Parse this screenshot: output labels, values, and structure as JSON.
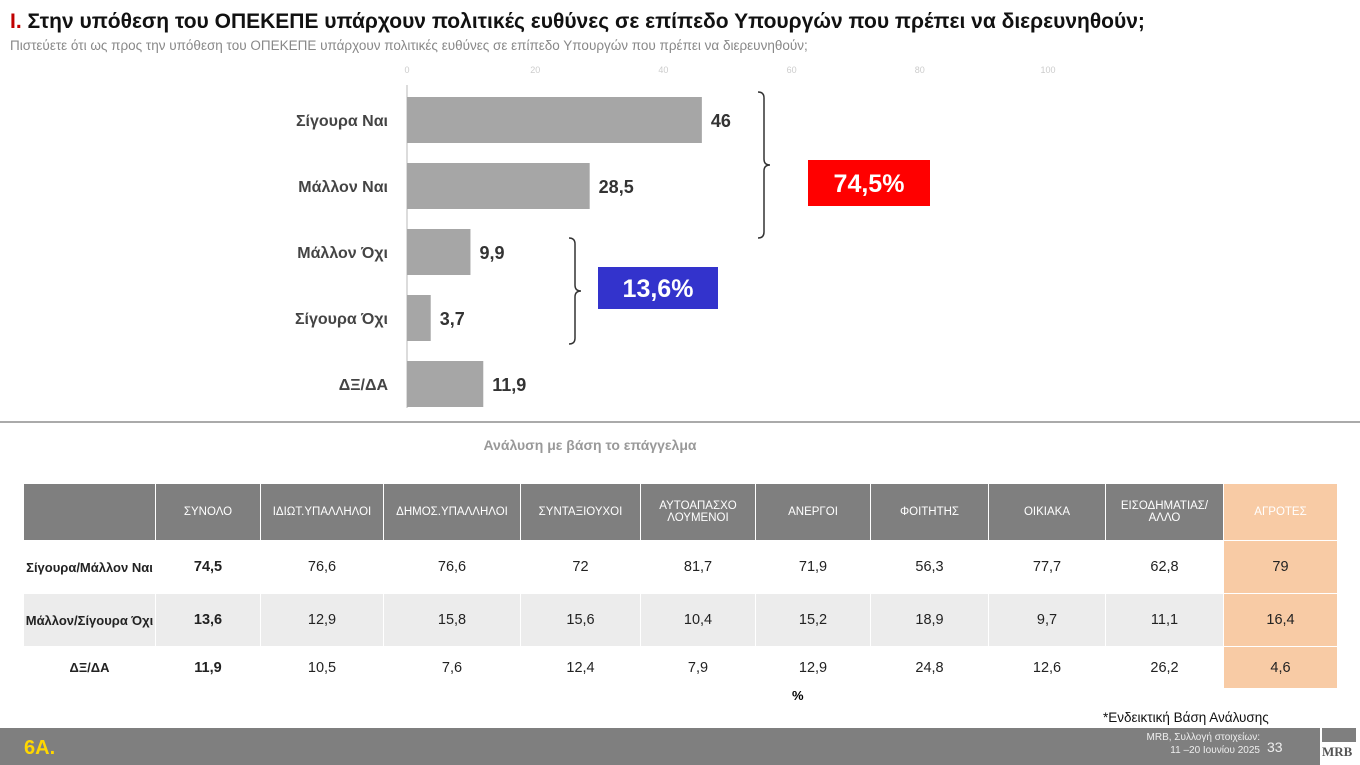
{
  "header": {
    "number": "I.",
    "title": "Στην υπόθεση του ΟΠΕΚΕΠΕ υπάρχουν πολιτικές ευθύνες σε επίπεδο Υπουργών που πρέπει να διερευνηθούν;",
    "subtitle": "Πιστεύετε ότι ως προς την υπόθεση του ΟΠΕΚΕΠΕ υπάρχουν πολιτικές ευθύνες σε επίπεδο Υπουργών που πρέπει να διερευνηθούν;"
  },
  "chart_data": {
    "type": "bar",
    "orientation": "horizontal",
    "categories": [
      "Σίγουρα Ναι",
      "Μάλλον Ναι",
      "Μάλλον Όχι",
      "Σίγουρα Όχι",
      "ΔΞ/ΔΑ"
    ],
    "values": [
      46,
      28.5,
      9.9,
      3.7,
      11.9
    ],
    "value_labels": [
      "46",
      "28,5",
      "9,9",
      "3,7",
      "11,9"
    ],
    "xlim": [
      0,
      100
    ],
    "xticks": [
      "0",
      "20",
      "40",
      "60",
      "80",
      "100"
    ],
    "bar_color": "#a6a6a6",
    "annotations": [
      {
        "label": "74,5%",
        "covers": [
          "Σίγουρα Ναι",
          "Μάλλον Ναι"
        ],
        "color": "#ff0000"
      },
      {
        "label": "13,6%",
        "covers": [
          "Μάλλον Όχι",
          "Σίγουρα Όχι"
        ],
        "color": "#3333cc"
      }
    ]
  },
  "table": {
    "title": "Ανάλυση με βάση το επάγγελμα",
    "columns": [
      "",
      "ΣΥΝΟΛΟ",
      "ΙΔΙΩΤ.ΥΠΑΛΛΗΛΟΙ",
      "ΔΗΜΟΣ.ΥΠΑΛΛΗΛΟΙ",
      "ΣΥΝΤΑΞΙΟΥΧΟΙ",
      "ΑΥΤΟΑΠΑΣΧΟ ΛΟΥΜΕΝΟΙ",
      "ΑΝΕΡΓΟΙ",
      "ΦΟΙΤΗΤΗΣ",
      "ΟΙΚΙΑΚΑ",
      "ΕΙΣΟΔΗΜΑΤΙΑΣ/ ΑΛΛΟ",
      "ΑΓΡΟΤΕΣ"
    ],
    "rows": [
      [
        "Σίγουρα/Μάλλον Ναι",
        "74,5",
        "76,6",
        "76,6",
        "72",
        "81,7",
        "71,9",
        "56,3",
        "77,7",
        "62,8",
        "79"
      ],
      [
        "Μάλλον/Σίγουρα Όχι",
        "13,6",
        "12,9",
        "15,8",
        "15,6",
        "10,4",
        "15,2",
        "18,9",
        "9,7",
        "11,1",
        "16,4"
      ],
      [
        "ΔΞ/ΔΑ",
        "11,9",
        "10,5",
        "7,6",
        "12,4",
        "7,9",
        "12,9",
        "24,8",
        "12,6",
        "26,2",
        "4,6"
      ]
    ],
    "unit": "%",
    "note": "*Ενδεικτική Βάση Ανάλυσης",
    "highlight_color": "#f8cba5"
  },
  "footer": {
    "slide": "6Α.",
    "source_line1": "MRB, Συλλογή στοιχείων:",
    "source_line2": "11 –20 Ιουνίου 2025",
    "page": "33",
    "logo": "MRB"
  }
}
